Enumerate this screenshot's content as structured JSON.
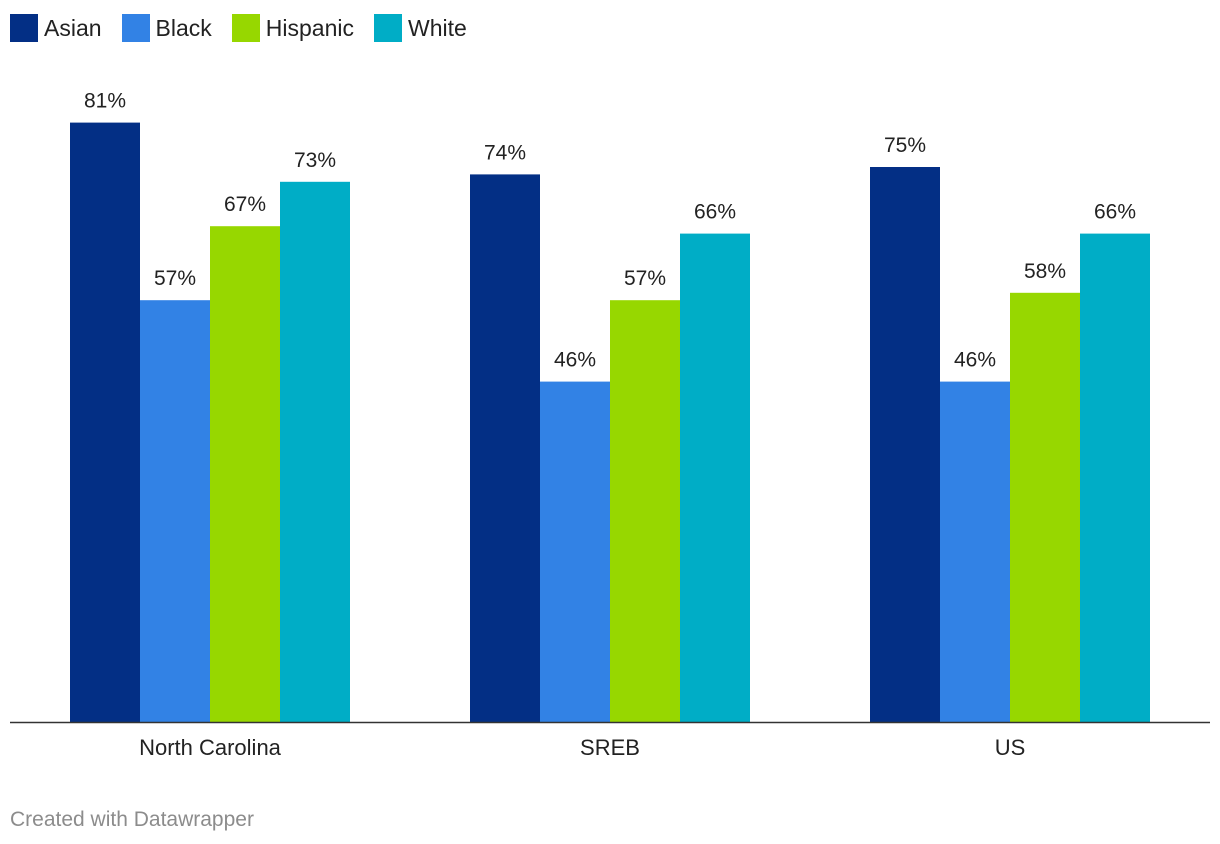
{
  "chart_data": {
    "type": "bar",
    "categories": [
      "North Carolina",
      "SREB",
      "US"
    ],
    "series": [
      {
        "name": "Asian",
        "color": "#032f85",
        "values": [
          81,
          74,
          75
        ],
        "labels": [
          "81%",
          "74%",
          "75%"
        ]
      },
      {
        "name": "Black",
        "color": "#3282e5",
        "values": [
          57,
          46,
          46
        ],
        "labels": [
          "57%",
          "46%",
          "46%"
        ]
      },
      {
        "name": "Hispanic",
        "color": "#97d700",
        "values": [
          67,
          57,
          58
        ],
        "labels": [
          "67%",
          "57%",
          "58%"
        ]
      },
      {
        "name": "White",
        "color": "#00adc6",
        "values": [
          73,
          66,
          66
        ],
        "labels": [
          "73%",
          "66%",
          "66%"
        ]
      }
    ],
    "ylim": [
      0,
      100
    ],
    "title": "",
    "xlabel": "",
    "ylabel": "",
    "legend_position": "top-left",
    "grid": false
  },
  "footer": {
    "credit": "Created with Datawrapper"
  }
}
